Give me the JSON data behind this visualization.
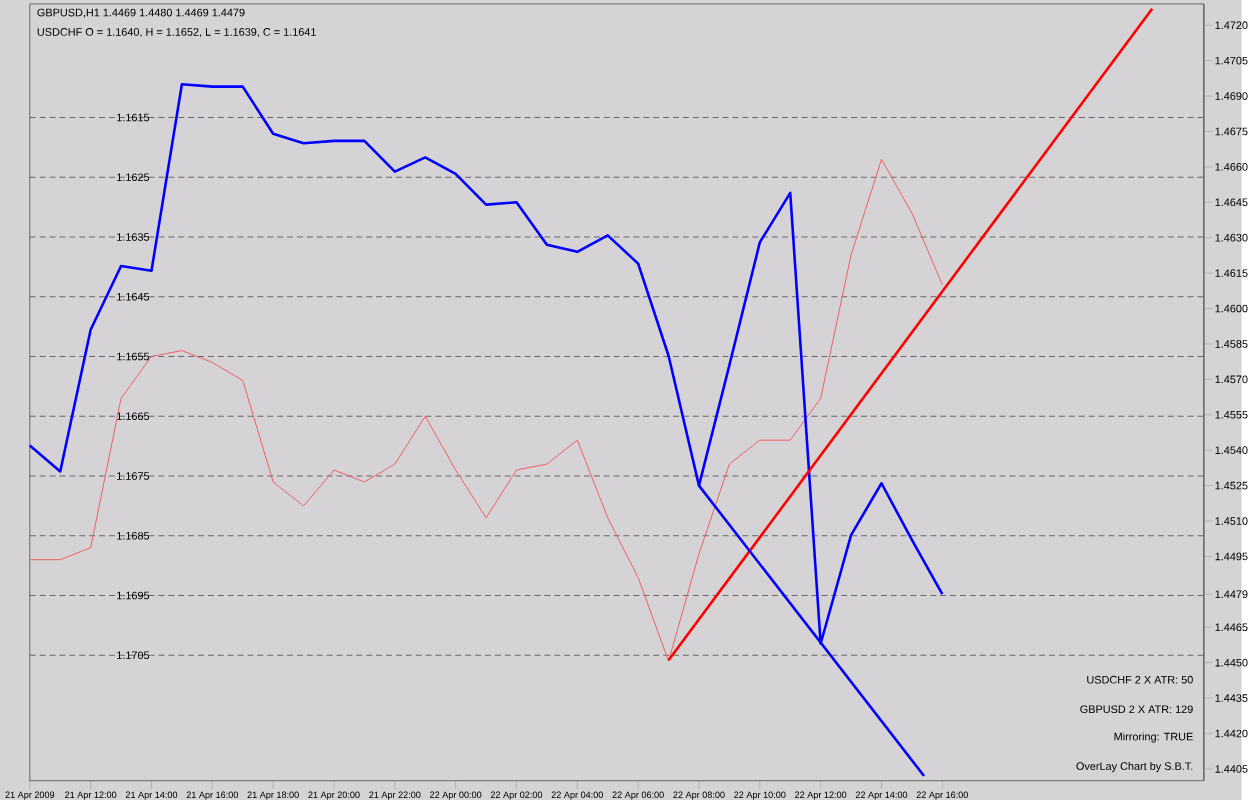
{
  "chart_data": {
    "type": "line",
    "x": [
      "2009-04-21T10:00",
      "2009-04-21T11:00",
      "2009-04-21T12:00",
      "2009-04-21T13:00",
      "2009-04-21T14:00",
      "2009-04-21T15:00",
      "2009-04-21T16:00",
      "2009-04-21T17:00",
      "2009-04-21T18:00",
      "2009-04-21T19:00",
      "2009-04-21T20:00",
      "2009-04-21T21:00",
      "2009-04-21T22:00",
      "2009-04-21T23:00",
      "2009-04-22T00:00",
      "2009-04-22T01:00",
      "2009-04-22T02:00",
      "2009-04-22T03:00",
      "2009-04-22T04:00",
      "2009-04-22T05:00",
      "2009-04-22T06:00",
      "2009-04-22T07:00",
      "2009-04-22T08:00",
      "2009-04-22T09:00",
      "2009-04-22T10:00",
      "2009-04-22T11:00",
      "2009-04-22T12:00",
      "2009-04-22T13:00",
      "2009-04-22T14:00",
      "2009-04-22T15:00",
      "2009-04-22T16:00"
    ],
    "series": [
      {
        "color": "#f06060",
        "axis": "y",
        "values": [
          1.1689,
          1.1689,
          1.1687,
          1.1662,
          1.1655,
          1.1654,
          1.1656,
          1.1659,
          1.1676,
          1.168,
          1.1674,
          1.1676,
          1.1673,
          1.1665,
          1.1674,
          1.1682,
          1.1674,
          1.1673,
          1.1669,
          1.1682,
          1.1692,
          1.1706,
          1.1688,
          1.1673,
          1.1669,
          1.1669,
          1.1662,
          1.1638,
          1.1622,
          1.1631,
          1.1643
        ]
      },
      {
        "color": "#0000ff",
        "axis": "y2",
        "values": [
          1.4542,
          1.4531,
          1.4591,
          1.4618,
          1.4616,
          1.4695,
          1.4694,
          1.4694,
          1.4674,
          1.467,
          1.4671,
          1.4671,
          1.4658,
          1.4664,
          1.4657,
          1.4644,
          1.4645,
          1.4627,
          1.4624,
          1.4631,
          1.4619,
          1.458,
          1.4525,
          1.4576,
          1.4628,
          1.4649,
          1.4458,
          1.4504,
          1.4526,
          1.4502,
          1.4479
        ]
      },
      {
        "type": "line",
        "color": "#ff0000",
        "axis": "y2",
        "x": [
          "2009-04-22T07:00",
          "2009-04-22T22:54"
        ],
        "values": [
          1.4451,
          1.4727
        ]
      },
      {
        "type": "line",
        "color": "#0000ff",
        "axis": "y2",
        "x": [
          "2009-04-22T08:00",
          "2009-04-22T15:24"
        ],
        "values": [
          1.4525,
          1.4402
        ]
      }
    ],
    "xlim": [
      "2009-04-21T10:00",
      "2009-04-23T00:36"
    ],
    "xticks": [
      {
        "value": "2009-04-21T10:00",
        "label": "21 Apr 2009"
      },
      {
        "value": "2009-04-21T12:00",
        "label": "21 Apr 12:00"
      },
      {
        "value": "2009-04-21T14:00",
        "label": "21 Apr 14:00"
      },
      {
        "value": "2009-04-21T16:00",
        "label": "21 Apr 16:00"
      },
      {
        "value": "2009-04-21T18:00",
        "label": "21 Apr 18:00"
      },
      {
        "value": "2009-04-21T20:00",
        "label": "21 Apr 20:00"
      },
      {
        "value": "2009-04-21T22:00",
        "label": "21 Apr 22:00"
      },
      {
        "value": "2009-04-22T00:00",
        "label": "22 Apr 00:00"
      },
      {
        "value": "2009-04-22T02:00",
        "label": "22 Apr 02:00"
      },
      {
        "value": "2009-04-22T04:00",
        "label": "22 Apr 04:00"
      },
      {
        "value": "2009-04-22T06:00",
        "label": "22 Apr 06:00"
      },
      {
        "value": "2009-04-22T08:00",
        "label": "22 Apr 08:00"
      },
      {
        "value": "2009-04-22T10:00",
        "label": "22 Apr 10:00"
      },
      {
        "value": "2009-04-22T12:00",
        "label": "22 Apr 12:00"
      },
      {
        "value": "2009-04-22T14:00",
        "label": "22 Apr 14:00"
      },
      {
        "value": "2009-04-22T16:00",
        "label": "22 Apr 16:00"
      }
    ],
    "ylim": [
      1.1726,
      1.1596
    ],
    "yticks": [
      1.1615,
      1.1625,
      1.1635,
      1.1645,
      1.1655,
      1.1665,
      1.1675,
      1.1685,
      1.1695,
      1.1705
    ],
    "y2lim": [
      1.44,
      1.4729
    ],
    "y2ticks": [
      1.4405,
      {
        "value": 1.442,
        "label": "1.4420"
      },
      1.4435,
      {
        "value": 1.445,
        "label": "1.4450"
      },
      1.4465,
      1.4479,
      1.4495,
      {
        "value": 1.451,
        "label": "1.4510"
      },
      1.4525,
      {
        "value": 1.454,
        "label": "1.4540"
      },
      1.4555,
      {
        "value": 1.457,
        "label": "1.4570"
      },
      1.4585,
      {
        "value": 1.46,
        "label": "1.4600"
      },
      1.4615,
      {
        "value": 1.463,
        "label": "1.4630"
      },
      1.4645,
      {
        "value": 1.466,
        "label": "1.4660"
      },
      1.4675,
      {
        "value": 1.469,
        "label": "1.4690"
      },
      1.4705,
      {
        "value": 1.472,
        "label": "1.4720"
      }
    ],
    "grid": "y",
    "annotations": [
      "GBPUSD,H1  1.4469 1.4480 1.4469 1.4479",
      "USDCHF O = 1.1640, H = 1.1652, L = 1.1639, C = 1.1641",
      "USDCHF 2 X ATR: 50",
      "GBPUSD 2 X ATR: 129",
      "Mirroring: TRUE",
      "OverLay Chart by S.B.T."
    ]
  }
}
